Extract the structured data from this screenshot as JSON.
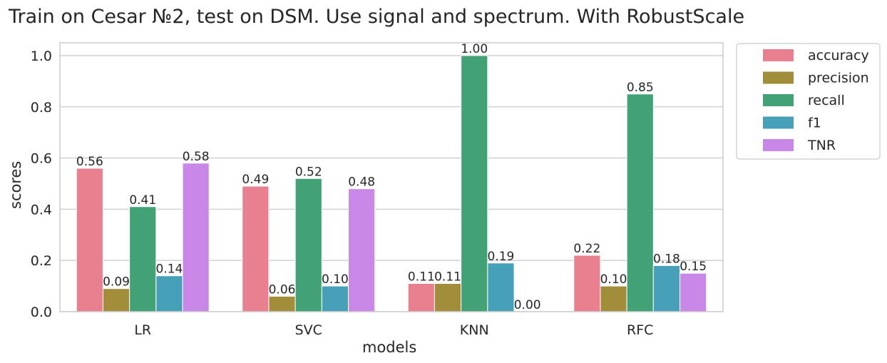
{
  "chart_data": {
    "type": "bar",
    "title": "Train on Cesar №2, test on DSM. Use signal and spectrum. With RobustScale",
    "xlabel": "models",
    "ylabel": "scores",
    "categories": [
      "LR",
      "SVC",
      "KNN",
      "RFC"
    ],
    "ylim": [
      0,
      1.05
    ],
    "yticks": [
      0.0,
      0.2,
      0.4,
      0.6,
      0.8,
      1.0
    ],
    "ytick_labels": [
      "0.0",
      "0.2",
      "0.4",
      "0.6",
      "0.8",
      "1.0"
    ],
    "grid": true,
    "legend_position": "outside-top-right",
    "series": [
      {
        "name": "accuracy",
        "color": "#E8808F",
        "values": [
          0.56,
          0.49,
          0.11,
          0.22
        ],
        "labels": [
          "0.56",
          "0.49",
          "0.11",
          "0.22"
        ]
      },
      {
        "name": "precision",
        "color": "#A18D3A",
        "values": [
          0.09,
          0.06,
          0.11,
          0.1
        ],
        "labels": [
          "0.09",
          "0.06",
          "0.11",
          "0.10"
        ]
      },
      {
        "name": "recall",
        "color": "#42A276",
        "values": [
          0.41,
          0.52,
          1.0,
          0.85
        ],
        "labels": [
          "0.41",
          "0.52",
          "1.00",
          "0.85"
        ]
      },
      {
        "name": "f1",
        "color": "#46A0B8",
        "values": [
          0.14,
          0.1,
          0.19,
          0.18
        ],
        "labels": [
          "0.14",
          "0.10",
          "0.19",
          "0.18"
        ]
      },
      {
        "name": "TNR",
        "color": "#C988E8",
        "values": [
          0.58,
          0.48,
          0.0,
          0.15
        ],
        "labels": [
          "0.58",
          "0.48",
          "0.00",
          "0.15"
        ]
      }
    ]
  }
}
